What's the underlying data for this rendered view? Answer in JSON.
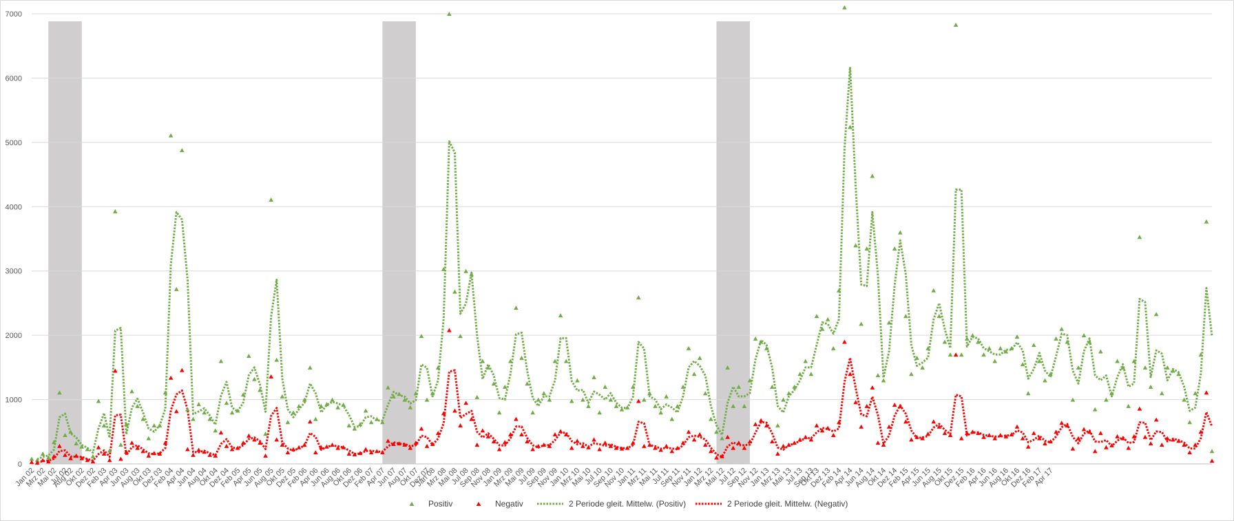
{
  "chart_data": {
    "type": "scatter",
    "title": "",
    "xlabel": "",
    "ylabel": "",
    "ylim": [
      0,
      7000
    ],
    "yticks": [
      0,
      1000,
      2000,
      3000,
      4000,
      5000,
      6000,
      7000
    ],
    "grid": true,
    "x_start": "Jan 02",
    "x_tick_labels": [
      "Jan 02",
      "Mrz 02",
      "Mai 02",
      "Jul 02",
      "Aug 02",
      "Okt 02",
      "Dez 02",
      "Feb 03",
      "Apr 03",
      "Jun 03",
      "Aug 03",
      "Okt 03",
      "Dez 03",
      "Feb 04",
      "Apr 04",
      "Jun 04",
      "Aug 04",
      "Okt 04",
      "Dez 04",
      "Feb 05",
      "Apr 05",
      "Jun 05",
      "Aug 05",
      "Okt 05",
      "Dez 05",
      "Feb 06",
      "Apr 06",
      "Jun 06",
      "Aug 06",
      "Okt 06",
      "Dez 06",
      "Feb 07",
      "Apr 07",
      "Jun 07",
      "Aug 07",
      "Okt 07",
      "Dez 07",
      "Jan 08",
      "Mrz 08",
      "Mai 08",
      "Jul 08",
      "Sep 08",
      "Nov 08",
      "Jan 09",
      "Mrz 09",
      "Mai 09",
      "Jul 09",
      "Sep 09",
      "Nov 09",
      "Jan 10",
      "Mrz 10",
      "Mai 10",
      "Jul 10",
      "Sep 10",
      "Nov 10",
      "Jan 11",
      "Mrz 11",
      "Mai 11",
      "Jul 11",
      "Sep 11",
      "Nov 11",
      "Jan 12",
      "Mrz 12",
      "Mai 12",
      "Jul 12",
      "Sep 12",
      "Nov 12",
      "Jan 13",
      "Mrz 13",
      "Mai 13",
      "Jul 13",
      "Sep 13",
      "Okt 13",
      "Dez 13",
      "Feb 14",
      "Apr 14",
      "Jun 14",
      "Aug 14",
      "Okt 14",
      "Dez 14",
      "Feb 15",
      "Apr 15",
      "Jun 15",
      "Aug 15",
      "Okt 15",
      "Dez 15",
      "Feb 16",
      "Apr 16",
      "Jun 16",
      "Aug 16",
      "Okt 16",
      "Dez 16",
      "Feb 17",
      "Apr 17"
    ],
    "shaded_periods": [
      {
        "start": "Apr 02",
        "end": "Okt 02"
      },
      {
        "start": "Apr 07",
        "end": "Okt 07"
      },
      {
        "start": "Apr 12",
        "end": "Okt 12"
      }
    ],
    "series": [
      {
        "name": "Positiv",
        "kind": "markers",
        "color": "#70AD47",
        "values": [
          80,
          60,
          160,
          100,
          340,
          1110,
          450,
          500,
          320,
          270,
          230,
          120,
          980,
          600,
          210,
          3930,
          300,
          620,
          1130,
          900,
          700,
          400,
          600,
          600,
          1110,
          5110,
          2720,
          4880,
          850,
          700,
          930,
          800,
          700,
          520,
          1600,
          950,
          800,
          830,
          1080,
          1680,
          1320,
          1150,
          470,
          4110,
          1620,
          1050,
          650,
          800,
          900,
          1000,
          1500,
          700,
          900,
          930,
          1000,
          880,
          920,
          600,
          550,
          620,
          830,
          650,
          700,
          650,
          1190,
          1050,
          1090,
          1000,
          880,
          1100,
          1990,
          1000,
          1100,
          1500,
          3030,
          7000,
          2680,
          1990,
          3000,
          2950,
          1040,
          1600,
          1500,
          1250,
          800,
          1200,
          1600,
          2430,
          1650,
          1250,
          800,
          1000,
          1100,
          1000,
          1600,
          2310,
          1600,
          980,
          1300,
          1000,
          900,
          1350,
          800,
          1200,
          1000,
          900,
          850,
          880,
          1200,
          2590,
          1000,
          1100,
          900,
          800,
          1050,
          700,
          900,
          1200,
          1800,
          1400,
          1650,
          1100,
          700,
          500,
          400,
          1500,
          900,
          1200,
          900,
          1300,
          1950,
          1900,
          1800,
          1200,
          600,
          1000,
          1100,
          1200,
          1400,
          1600,
          1400,
          2300,
          2100,
          2250,
          1800,
          2700,
          7100,
          5240,
          3400,
          2180,
          3350,
          4480,
          1380,
          1300,
          2200,
          3350,
          3600,
          2300,
          1400,
          1650,
          1500,
          1800,
          2700,
          2300,
          1900,
          1700,
          6830,
          1700,
          1950,
          2000,
          1900,
          1700,
          1800,
          1600,
          1800,
          1750,
          1800,
          1980,
          1550,
          1100,
          1850,
          1600,
          1300,
          1400,
          1950,
          2100,
          1900,
          1000,
          1500,
          2000,
          1900,
          850,
          1750,
          1000,
          1100,
          1600,
          1500,
          900,
          1600,
          3530,
          1500,
          1200,
          2330,
          1100,
          1500,
          1450,
          1400,
          1000,
          650,
          1100,
          1700,
          3770,
          200
        ]
      },
      {
        "name": "Negativ",
        "kind": "markers",
        "color": "#FF0000",
        "values": [
          30,
          20,
          60,
          40,
          120,
          280,
          140,
          90,
          130,
          90,
          60,
          40,
          260,
          160,
          60,
          1450,
          80,
          190,
          330,
          250,
          200,
          130,
          170,
          160,
          330,
          1340,
          820,
          1460,
          230,
          140,
          220,
          190,
          140,
          130,
          490,
          280,
          230,
          250,
          330,
          440,
          380,
          330,
          130,
          1360,
          380,
          300,
          180,
          230,
          260,
          300,
          660,
          180,
          260,
          270,
          300,
          250,
          260,
          160,
          150,
          170,
          230,
          180,
          200,
          180,
          360,
          310,
          320,
          300,
          250,
          330,
          550,
          280,
          310,
          480,
          790,
          2080,
          830,
          600,
          950,
          700,
          300,
          520,
          430,
          350,
          230,
          340,
          460,
          700,
          460,
          350,
          230,
          280,
          300,
          280,
          460,
          510,
          460,
          250,
          360,
          280,
          260,
          380,
          230,
          330,
          280,
          250,
          240,
          250,
          330,
          980,
          280,
          300,
          250,
          220,
          280,
          200,
          250,
          330,
          500,
          380,
          460,
          300,
          200,
          100,
          120,
          420,
          250,
          330,
          250,
          350,
          620,
          680,
          600,
          350,
          160,
          280,
          300,
          330,
          380,
          420,
          380,
          600,
          520,
          560,
          450,
          650,
          1900,
          1400,
          960,
          580,
          900,
          1190,
          330,
          300,
          580,
          920,
          900,
          660,
          380,
          420,
          400,
          470,
          660,
          580,
          480,
          450,
          1700,
          400,
          480,
          500,
          480,
          420,
          450,
          400,
          450,
          430,
          460,
          580,
          400,
          270,
          480,
          400,
          320,
          350,
          500,
          640,
          600,
          240,
          400,
          540,
          500,
          200,
          480,
          260,
          290,
          430,
          400,
          250,
          430,
          860,
          420,
          320,
          690,
          300,
          400,
          380,
          360,
          300,
          180,
          300,
          500,
          1110,
          50
        ]
      },
      {
        "name": "2 Periode gleit. Mittelw. (Positiv)",
        "kind": "moving_average",
        "period": 2,
        "color": "#70AD47",
        "dash": true
      },
      {
        "name": "2 Periode gleit. Mittelw. (Negativ)",
        "kind": "moving_average",
        "period": 2,
        "color": "#FF0000",
        "dash": true
      }
    ],
    "legend": "bottom"
  }
}
